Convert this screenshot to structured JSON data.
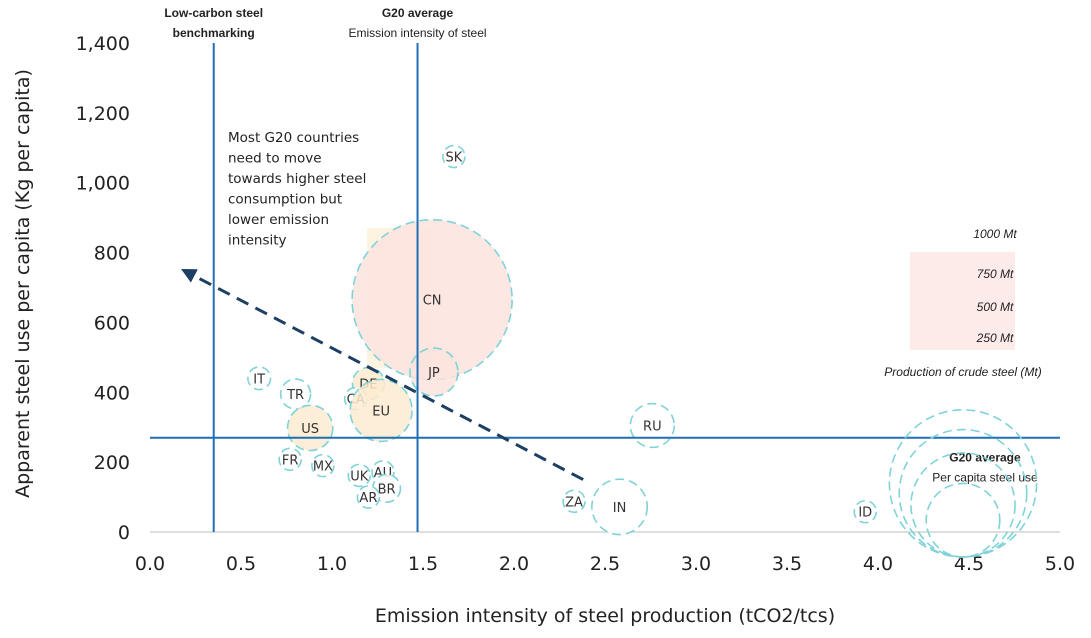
{
  "chart_data": {
    "type": "scatter",
    "xlabel": "Emission intensity of steel production (tCO2/tcs)",
    "ylabel": "Apparent steel use per capita (Kg per capita)",
    "xlim": [
      0,
      5
    ],
    "ylim": [
      0,
      1400
    ],
    "x_ticks": [
      "0.0",
      "0.5",
      "1.0",
      "1.5",
      "2.0",
      "2.5",
      "3.0",
      "3.5",
      "4.0",
      "4.5",
      "5.0"
    ],
    "y_ticks": [
      "0",
      "200",
      "400",
      "600",
      "800",
      "1,000",
      "1,200",
      "1,400"
    ],
    "grid": false,
    "points": [
      {
        "label": "SK",
        "x": 1.67,
        "y": 1075,
        "production_mt": 5,
        "fill": "#ffffff"
      },
      {
        "label": "CN",
        "x": 1.55,
        "y": 665,
        "production_mt": 1000,
        "fill": "#fbe3de"
      },
      {
        "label": "JP",
        "x": 1.56,
        "y": 458,
        "production_mt": 90,
        "fill": "#fbe3de"
      },
      {
        "label": "IT",
        "x": 0.6,
        "y": 440,
        "production_mt": 20,
        "fill": "#ffffff"
      },
      {
        "label": "TR",
        "x": 0.8,
        "y": 395,
        "production_mt": 35,
        "fill": "#ffffff"
      },
      {
        "label": "DE",
        "x": 1.2,
        "y": 425,
        "production_mt": 40,
        "fill": "#fdebd0"
      },
      {
        "label": "CA",
        "x": 1.13,
        "y": 382,
        "production_mt": 12,
        "fill": "#ffffff"
      },
      {
        "label": "EU",
        "x": 1.27,
        "y": 348,
        "production_mt": 150,
        "fill": "#fdebd0"
      },
      {
        "label": "US",
        "x": 0.88,
        "y": 298,
        "production_mt": 80,
        "fill": "#fdebd0"
      },
      {
        "label": "RU",
        "x": 2.76,
        "y": 305,
        "production_mt": 75,
        "fill": "#ffffff"
      },
      {
        "label": "FR",
        "x": 0.77,
        "y": 208,
        "production_mt": 14,
        "fill": "#ffffff"
      },
      {
        "label": "MX",
        "x": 0.95,
        "y": 190,
        "production_mt": 18,
        "fill": "#ffffff"
      },
      {
        "label": "UK",
        "x": 1.15,
        "y": 162,
        "production_mt": 7,
        "fill": "#ffffff"
      },
      {
        "label": "AU",
        "x": 1.28,
        "y": 172,
        "production_mt": 5,
        "fill": "#ffffff"
      },
      {
        "label": "BR",
        "x": 1.3,
        "y": 125,
        "production_mt": 30,
        "fill": "#ffffff"
      },
      {
        "label": "AR",
        "x": 1.2,
        "y": 100,
        "production_mt": 5,
        "fill": "#ffffff"
      },
      {
        "label": "ZA",
        "x": 2.33,
        "y": 88,
        "production_mt": 5,
        "fill": "#ffffff"
      },
      {
        "label": "IN",
        "x": 2.58,
        "y": 72,
        "production_mt": 120,
        "fill": "#ffffff"
      },
      {
        "label": "ID",
        "x": 3.93,
        "y": 58,
        "production_mt": 5,
        "fill": "#ffffff"
      }
    ],
    "reference_lines": {
      "vertical": [
        {
          "x": 0.35,
          "title": "Low-carbon steel",
          "title2": "benchmarking"
        },
        {
          "x": 1.47,
          "title": "G20 average",
          "subtitle": "Emission intensity of steel"
        }
      ],
      "horizontal": [
        {
          "y": 270,
          "title": "G20 average",
          "subtitle": "Per capita steel use"
        }
      ]
    },
    "arrow": {
      "from": [
        2.38,
        150
      ],
      "to": [
        0.2,
        745
      ]
    },
    "note": [
      "Most G20 countries",
      "need to move",
      "towards higher steel",
      "consumption but",
      "lower emission",
      "intensity"
    ],
    "size_legend": {
      "items": [
        "1000 Mt",
        "750 Mt",
        "500 Mt",
        "250 Mt"
      ],
      "values": [
        1000,
        750,
        500,
        250
      ],
      "title": "Production of crude steel (Mt)"
    },
    "colors": {
      "line": "#1f6fb5",
      "bubble_stroke": "#7fd3d8",
      "arrow": "#1c3f63"
    }
  }
}
